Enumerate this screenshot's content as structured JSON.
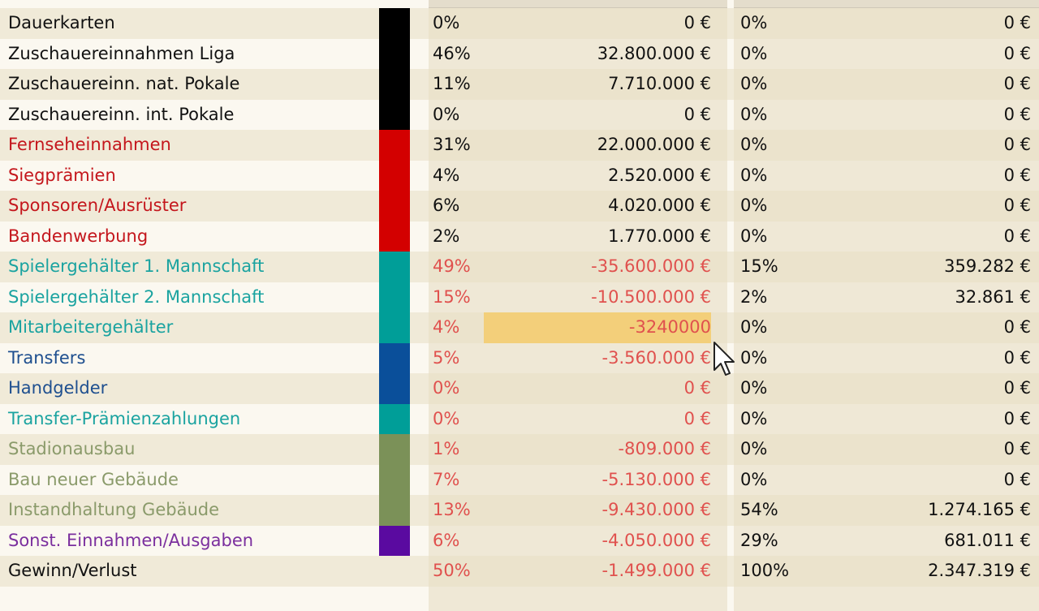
{
  "rows": [
    {
      "label": "Dauerkarten",
      "label_color": "#111111",
      "swatch": "#000000",
      "pct1": "0%",
      "amt1": "0 €",
      "pct2": "0%",
      "amt2": "0 €",
      "neg": false
    },
    {
      "label": "Zuschauereinnahmen Liga",
      "label_color": "#111111",
      "swatch": "#000000",
      "pct1": "46%",
      "amt1": "32.800.000 €",
      "pct2": "0%",
      "amt2": "0 €",
      "neg": false
    },
    {
      "label": "Zuschauereinn. nat. Pokale",
      "label_color": "#111111",
      "swatch": "#000000",
      "pct1": "11%",
      "amt1": "7.710.000 €",
      "pct2": "0%",
      "amt2": "0 €",
      "neg": false
    },
    {
      "label": "Zuschauereinn. int. Pokale",
      "label_color": "#111111",
      "swatch": "#000000",
      "pct1": "0%",
      "amt1": "0 €",
      "pct2": "0%",
      "amt2": "0 €",
      "neg": false
    },
    {
      "label": "Fernseheinnahmen",
      "label_color": "#c4161c",
      "swatch": "#d30000",
      "pct1": "31%",
      "amt1": "22.000.000 €",
      "pct2": "0%",
      "amt2": "0 €",
      "neg": false
    },
    {
      "label": "Siegprämien",
      "label_color": "#c4161c",
      "swatch": "#d30000",
      "pct1": "4%",
      "amt1": "2.520.000 €",
      "pct2": "0%",
      "amt2": "0 €",
      "neg": false
    },
    {
      "label": "Sponsoren/Ausrüster",
      "label_color": "#c4161c",
      "swatch": "#d30000",
      "pct1": "6%",
      "amt1": "4.020.000 €",
      "pct2": "0%",
      "amt2": "0 €",
      "neg": false
    },
    {
      "label": "Bandenwerbung",
      "label_color": "#c4161c",
      "swatch": "#d30000",
      "pct1": "2%",
      "amt1": "1.770.000 €",
      "pct2": "0%",
      "amt2": "0 €",
      "neg": false
    },
    {
      "label": "Spielergehälter 1. Mannschaft",
      "label_color": "#1aa3a0",
      "swatch": "#009e98",
      "pct1": "49%",
      "amt1": "-35.600.000 €",
      "pct2": "15%",
      "amt2": "359.282 €",
      "neg": true
    },
    {
      "label": "Spielergehälter 2. Mannschaft",
      "label_color": "#1aa3a0",
      "swatch": "#009e98",
      "pct1": "15%",
      "amt1": "-10.500.000 €",
      "pct2": "2%",
      "amt2": "32.861 €",
      "neg": true
    },
    {
      "label": "Mitarbeitergehälter",
      "label_color": "#1aa3a0",
      "swatch": "#009e98",
      "pct1": "4%",
      "amt1": "-3240000",
      "pct2": "0%",
      "amt2": "0 €",
      "neg": true,
      "editing": true
    },
    {
      "label": "Transfers",
      "label_color": "#1e4f8f",
      "swatch": "#0a4f9a",
      "pct1": "5%",
      "amt1": "-3.560.000 €",
      "pct2": "0%",
      "amt2": "0 €",
      "neg": true
    },
    {
      "label": "Handgelder",
      "label_color": "#1e4f8f",
      "swatch": "#0a4f9a",
      "pct1": "0%",
      "amt1": "0 €",
      "pct2": "0%",
      "amt2": "0 €",
      "neg": true
    },
    {
      "label": "Transfer-Prämienzahlungen",
      "label_color": "#1aa3a0",
      "swatch": "#009e98",
      "pct1": "0%",
      "amt1": "0 €",
      "pct2": "0%",
      "amt2": "0 €",
      "neg": true
    },
    {
      "label": "Stadionausbau",
      "label_color": "#8a9a6a",
      "swatch": "#7b9158",
      "pct1": "1%",
      "amt1": "-809.000 €",
      "pct2": "0%",
      "amt2": "0 €",
      "neg": true
    },
    {
      "label": "Bau neuer Gebäude",
      "label_color": "#8a9a6a",
      "swatch": "#7b9158",
      "pct1": "7%",
      "amt1": "-5.130.000 €",
      "pct2": "0%",
      "amt2": "0 €",
      "neg": true
    },
    {
      "label": "Instandhaltung Gebäude",
      "label_color": "#8a9a6a",
      "swatch": "#7b9158",
      "pct1": "13%",
      "amt1": "-9.430.000 €",
      "pct2": "54%",
      "amt2": "1.274.165 €",
      "neg": true
    },
    {
      "label": "Sonst. Einnahmen/Ausgaben",
      "label_color": "#7b2f9e",
      "swatch": "#5a0aa0",
      "pct1": "6%",
      "amt1": "-4.050.000 €",
      "pct2": "29%",
      "amt2": "681.011 €",
      "neg": true
    },
    {
      "label": "Gewinn/Verlust",
      "label_color": "#111111",
      "swatch": "",
      "pct1": "50%",
      "amt1": "-1.499.000 €",
      "pct2": "100%",
      "amt2": "2.347.319 €",
      "neg": true
    }
  ]
}
